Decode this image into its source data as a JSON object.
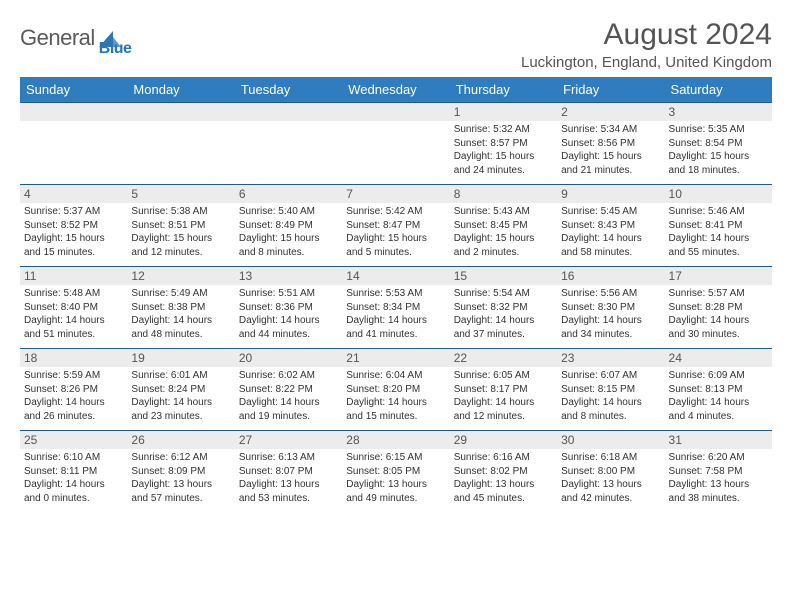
{
  "logo": {
    "text1": "General",
    "text2": "Blue"
  },
  "title": "August 2024",
  "location": "Luckington, England, United Kingdom",
  "colors": {
    "header_bg": "#2f7cbf",
    "header_fg": "#ffffff",
    "row_border": "#1f5a8c",
    "daynum_bg": "#ececec",
    "logo_blue": "#2976b8"
  },
  "daysOfWeek": [
    "Sunday",
    "Monday",
    "Tuesday",
    "Wednesday",
    "Thursday",
    "Friday",
    "Saturday"
  ],
  "weeks": [
    [
      null,
      null,
      null,
      null,
      {
        "n": "1",
        "sr": "5:32 AM",
        "ss": "8:57 PM",
        "dl": "15 hours and 24 minutes."
      },
      {
        "n": "2",
        "sr": "5:34 AM",
        "ss": "8:56 PM",
        "dl": "15 hours and 21 minutes."
      },
      {
        "n": "3",
        "sr": "5:35 AM",
        "ss": "8:54 PM",
        "dl": "15 hours and 18 minutes."
      }
    ],
    [
      {
        "n": "4",
        "sr": "5:37 AM",
        "ss": "8:52 PM",
        "dl": "15 hours and 15 minutes."
      },
      {
        "n": "5",
        "sr": "5:38 AM",
        "ss": "8:51 PM",
        "dl": "15 hours and 12 minutes."
      },
      {
        "n": "6",
        "sr": "5:40 AM",
        "ss": "8:49 PM",
        "dl": "15 hours and 8 minutes."
      },
      {
        "n": "7",
        "sr": "5:42 AM",
        "ss": "8:47 PM",
        "dl": "15 hours and 5 minutes."
      },
      {
        "n": "8",
        "sr": "5:43 AM",
        "ss": "8:45 PM",
        "dl": "15 hours and 2 minutes."
      },
      {
        "n": "9",
        "sr": "5:45 AM",
        "ss": "8:43 PM",
        "dl": "14 hours and 58 minutes."
      },
      {
        "n": "10",
        "sr": "5:46 AM",
        "ss": "8:41 PM",
        "dl": "14 hours and 55 minutes."
      }
    ],
    [
      {
        "n": "11",
        "sr": "5:48 AM",
        "ss": "8:40 PM",
        "dl": "14 hours and 51 minutes."
      },
      {
        "n": "12",
        "sr": "5:49 AM",
        "ss": "8:38 PM",
        "dl": "14 hours and 48 minutes."
      },
      {
        "n": "13",
        "sr": "5:51 AM",
        "ss": "8:36 PM",
        "dl": "14 hours and 44 minutes."
      },
      {
        "n": "14",
        "sr": "5:53 AM",
        "ss": "8:34 PM",
        "dl": "14 hours and 41 minutes."
      },
      {
        "n": "15",
        "sr": "5:54 AM",
        "ss": "8:32 PM",
        "dl": "14 hours and 37 minutes."
      },
      {
        "n": "16",
        "sr": "5:56 AM",
        "ss": "8:30 PM",
        "dl": "14 hours and 34 minutes."
      },
      {
        "n": "17",
        "sr": "5:57 AM",
        "ss": "8:28 PM",
        "dl": "14 hours and 30 minutes."
      }
    ],
    [
      {
        "n": "18",
        "sr": "5:59 AM",
        "ss": "8:26 PM",
        "dl": "14 hours and 26 minutes."
      },
      {
        "n": "19",
        "sr": "6:01 AM",
        "ss": "8:24 PM",
        "dl": "14 hours and 23 minutes."
      },
      {
        "n": "20",
        "sr": "6:02 AM",
        "ss": "8:22 PM",
        "dl": "14 hours and 19 minutes."
      },
      {
        "n": "21",
        "sr": "6:04 AM",
        "ss": "8:20 PM",
        "dl": "14 hours and 15 minutes."
      },
      {
        "n": "22",
        "sr": "6:05 AM",
        "ss": "8:17 PM",
        "dl": "14 hours and 12 minutes."
      },
      {
        "n": "23",
        "sr": "6:07 AM",
        "ss": "8:15 PM",
        "dl": "14 hours and 8 minutes."
      },
      {
        "n": "24",
        "sr": "6:09 AM",
        "ss": "8:13 PM",
        "dl": "14 hours and 4 minutes."
      }
    ],
    [
      {
        "n": "25",
        "sr": "6:10 AM",
        "ss": "8:11 PM",
        "dl": "14 hours and 0 minutes."
      },
      {
        "n": "26",
        "sr": "6:12 AM",
        "ss": "8:09 PM",
        "dl": "13 hours and 57 minutes."
      },
      {
        "n": "27",
        "sr": "6:13 AM",
        "ss": "8:07 PM",
        "dl": "13 hours and 53 minutes."
      },
      {
        "n": "28",
        "sr": "6:15 AM",
        "ss": "8:05 PM",
        "dl": "13 hours and 49 minutes."
      },
      {
        "n": "29",
        "sr": "6:16 AM",
        "ss": "8:02 PM",
        "dl": "13 hours and 45 minutes."
      },
      {
        "n": "30",
        "sr": "6:18 AM",
        "ss": "8:00 PM",
        "dl": "13 hours and 42 minutes."
      },
      {
        "n": "31",
        "sr": "6:20 AM",
        "ss": "7:58 PM",
        "dl": "13 hours and 38 minutes."
      }
    ]
  ],
  "labels": {
    "sunrise": "Sunrise: ",
    "sunset": "Sunset: ",
    "daylight": "Daylight: "
  }
}
